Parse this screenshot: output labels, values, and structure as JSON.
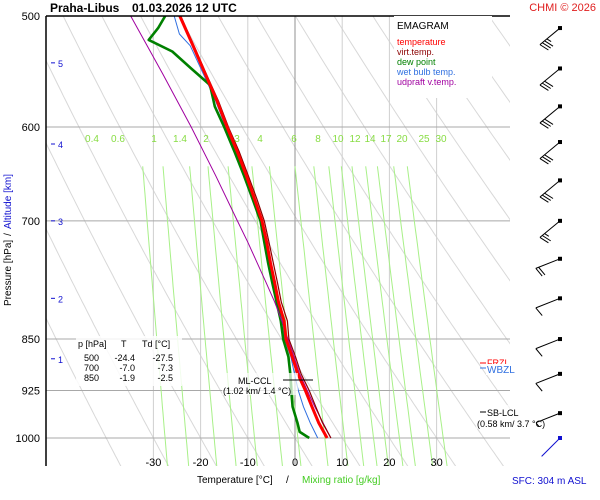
{
  "header": {
    "station": "Praha-Libus",
    "datetime": "01.03.2026 12 UTC",
    "copyright": "CHMI © 2026"
  },
  "legend": {
    "title": "EMAGRAM",
    "items": [
      {
        "label": "temperature",
        "color": "#ff0000"
      },
      {
        "label": "virt.temp.",
        "color": "#8b0000"
      },
      {
        "label": "dew point",
        "color": "#008000"
      },
      {
        "label": "wet bulb temp.",
        "color": "#3070e0"
      },
      {
        "label": "udpraft v.temp.",
        "color": "#a000a0"
      }
    ]
  },
  "table": {
    "headers": [
      "p [hPa]",
      "T",
      "Td [°C]"
    ],
    "rows": [
      [
        "500",
        "-24.4",
        "-27.5"
      ],
      [
        "700",
        "-7.0",
        "-7.3"
      ],
      [
        "850",
        "-1.9",
        "-2.5"
      ]
    ]
  },
  "annotations": {
    "ml_ccl": {
      "label": "ML-CCL",
      "detail": "(1.02 km/ 1.4 °C)"
    },
    "sb_lcl": {
      "label": "SB-LCL",
      "detail": "(0.58 km/ 3.7 °C)"
    },
    "frzl": {
      "label": "FRZL",
      "color": "#ff0000"
    },
    "wbzl": {
      "label": "WBZL",
      "color": "#3070e0"
    }
  },
  "footer": {
    "xlabel_temp": "Temperature [°C]",
    "xlabel_sep": "/",
    "xlabel_mix": "Mixing ratio [g/kg]",
    "surface": "SFC: 304 m ASL"
  },
  "chart_data": {
    "type": "line",
    "title": "Praha-Libus 01.03.2026 12 UTC",
    "subtitle": "EMAGRAM",
    "xlabel": "Temperature [°C] / Mixing ratio [g/kg]",
    "ylabel": "Pressure [hPa] / Altitude [km]",
    "xlim": [
      -40,
      40
    ],
    "ylim_hpa": [
      1100,
      500
    ],
    "pressure_ticks": [
      500,
      600,
      700,
      850,
      925,
      1000
    ],
    "temperature_ticks": [
      -30,
      -20,
      -10,
      0,
      10,
      20,
      30
    ],
    "altitude_ticks_km": [
      1,
      2,
      3,
      4,
      5
    ],
    "altitude_tick_hpa": [
      878,
      795,
      700,
      617,
      540
    ],
    "mixing_ratio_labels": [
      "0.4",
      "0.6",
      "1",
      "1.4",
      "2",
      "3",
      "4",
      "6",
      "8",
      "10",
      "12",
      "14",
      "17",
      "20",
      "25",
      "30"
    ],
    "grid": true,
    "legend_position": "top-right",
    "series": [
      {
        "name": "temperature",
        "color": "#ff0000",
        "points": [
          [
            1000,
            6.8
          ],
          [
            975,
            5.0
          ],
          [
            950,
            3.6
          ],
          [
            925,
            2.2
          ],
          [
            900,
            0.6
          ],
          [
            875,
            -0.6
          ],
          [
            850,
            -1.9
          ],
          [
            825,
            -2.3
          ],
          [
            800,
            -3.5
          ],
          [
            775,
            -4.3
          ],
          [
            750,
            -5.2
          ],
          [
            725,
            -6.0
          ],
          [
            700,
            -7.0
          ],
          [
            675,
            -8.6
          ],
          [
            650,
            -10.3
          ],
          [
            625,
            -12.2
          ],
          [
            600,
            -14.4
          ],
          [
            575,
            -16.5
          ],
          [
            550,
            -19.0
          ],
          [
            525,
            -21.6
          ],
          [
            500,
            -24.4
          ]
        ]
      },
      {
        "name": "virt.temp.",
        "color": "#8b0000",
        "points": [
          [
            1000,
            7.6
          ],
          [
            975,
            5.8
          ],
          [
            950,
            4.4
          ],
          [
            925,
            3.0
          ],
          [
            900,
            1.3
          ],
          [
            875,
            0.1
          ],
          [
            850,
            -1.3
          ],
          [
            825,
            -1.6
          ],
          [
            800,
            -2.9
          ],
          [
            775,
            -3.7
          ],
          [
            750,
            -4.6
          ],
          [
            725,
            -5.5
          ],
          [
            700,
            -6.5
          ],
          [
            675,
            -8.1
          ],
          [
            650,
            -9.9
          ],
          [
            625,
            -11.8
          ],
          [
            600,
            -14.1
          ],
          [
            575,
            -16.2
          ],
          [
            550,
            -18.8
          ],
          [
            525,
            -21.4
          ],
          [
            500,
            -24.2
          ]
        ]
      },
      {
        "name": "dew point",
        "color": "#008000",
        "points": [
          [
            1000,
            3.0
          ],
          [
            990,
            1.0
          ],
          [
            975,
            0.5
          ],
          [
            950,
            -0.5
          ],
          [
            925,
            -0.8
          ],
          [
            900,
            -1.0
          ],
          [
            875,
            -1.4
          ],
          [
            850,
            -2.5
          ],
          [
            825,
            -3.0
          ],
          [
            800,
            -3.9
          ],
          [
            775,
            -4.8
          ],
          [
            750,
            -5.7
          ],
          [
            725,
            -6.5
          ],
          [
            700,
            -7.3
          ],
          [
            675,
            -9.0
          ],
          [
            650,
            -10.8
          ],
          [
            625,
            -12.8
          ],
          [
            600,
            -15.0
          ],
          [
            580,
            -17.0
          ],
          [
            560,
            -18.0
          ],
          [
            545,
            -22.0
          ],
          [
            530,
            -26.0
          ],
          [
            520,
            -31.0
          ],
          [
            510,
            -29.0
          ],
          [
            500,
            -27.5
          ]
        ]
      },
      {
        "name": "wet bulb temp.",
        "color": "#3070e0",
        "points": [
          [
            1000,
            4.8
          ],
          [
            975,
            3.2
          ],
          [
            950,
            1.8
          ],
          [
            925,
            0.7
          ],
          [
            900,
            -0.1
          ],
          [
            875,
            -0.9
          ],
          [
            850,
            -2.2
          ],
          [
            825,
            -2.6
          ],
          [
            800,
            -3.7
          ],
          [
            775,
            -4.5
          ],
          [
            750,
            -5.4
          ],
          [
            725,
            -6.2
          ],
          [
            700,
            -7.1
          ],
          [
            675,
            -8.8
          ],
          [
            650,
            -10.5
          ],
          [
            625,
            -12.5
          ],
          [
            600,
            -14.7
          ],
          [
            575,
            -16.8
          ],
          [
            550,
            -19.4
          ],
          [
            525,
            -22.2
          ],
          [
            515,
            -24.5
          ],
          [
            500,
            -25.6
          ]
        ]
      },
      {
        "name": "udpraft v.temp.",
        "color": "#a000a0",
        "points": [
          [
            1000,
            7.6
          ],
          [
            950,
            4.2
          ],
          [
            925,
            2.6
          ],
          [
            900,
            1.0
          ],
          [
            875,
            -0.2
          ],
          [
            850,
            -1.5
          ],
          [
            825,
            -2.8
          ],
          [
            800,
            -4.3
          ],
          [
            775,
            -6.1
          ],
          [
            750,
            -8.0
          ],
          [
            725,
            -10.0
          ],
          [
            700,
            -12.2
          ],
          [
            650,
            -16.8
          ],
          [
            600,
            -22.0
          ],
          [
            550,
            -28.0
          ],
          [
            500,
            -34.8
          ]
        ]
      }
    ],
    "wind_barbs": [
      {
        "hpa": 510,
        "knots": 35
      },
      {
        "hpa": 545,
        "knots": 30
      },
      {
        "hpa": 580,
        "knots": 30
      },
      {
        "hpa": 615,
        "knots": 30
      },
      {
        "hpa": 655,
        "knots": 30
      },
      {
        "hpa": 700,
        "knots": 25
      },
      {
        "hpa": 745,
        "knots": 20
      },
      {
        "hpa": 795,
        "knots": 10
      },
      {
        "hpa": 850,
        "knots": 10
      },
      {
        "hpa": 900,
        "knots": 10
      },
      {
        "hpa": 960,
        "knots": 5
      },
      {
        "hpa": 1000,
        "knots": 0
      }
    ]
  }
}
